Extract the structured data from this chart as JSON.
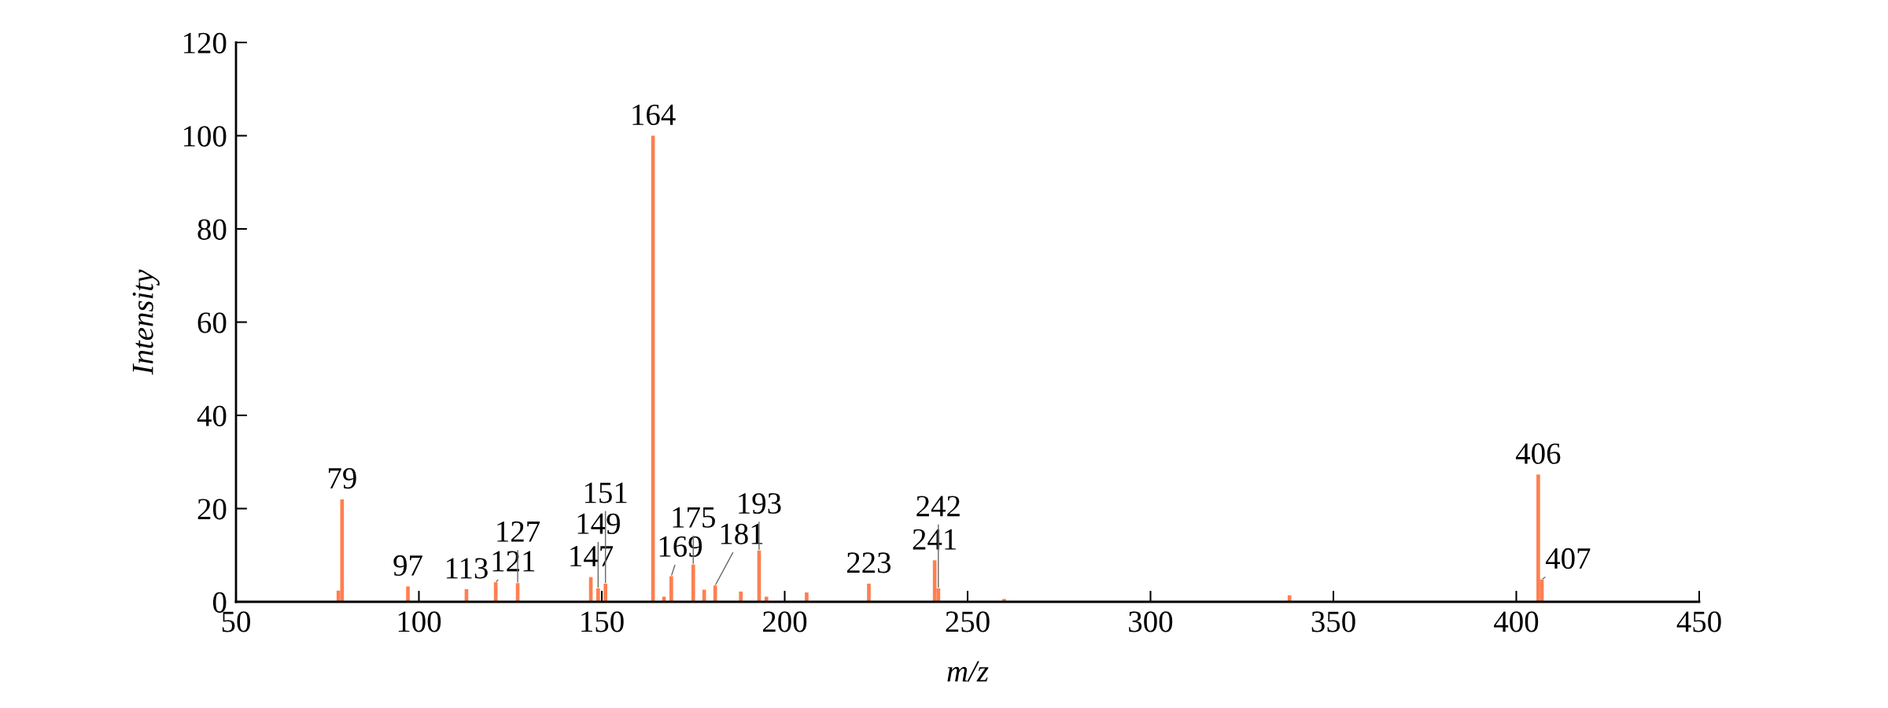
{
  "chart_data": {
    "type": "bar",
    "xlabel": "m/z",
    "ylabel": "Intensity",
    "x": [
      78,
      79,
      97,
      113,
      121,
      127,
      147,
      149,
      151,
      164,
      167,
      169,
      175,
      178,
      181,
      188,
      193,
      195,
      206,
      223,
      241,
      242,
      260,
      338,
      406,
      407
    ],
    "values": [
      2.4,
      22,
      3.3,
      2.7,
      4.2,
      4.0,
      5.3,
      2.9,
      3.9,
      100,
      1.1,
      5.5,
      8,
      2.6,
      3.5,
      2.2,
      11,
      1.1,
      2.0,
      3.9,
      8.9,
      2.9,
      0.6,
      1.4,
      27.3,
      4.8
    ],
    "annotations": [
      {
        "text": "79",
        "x": 79,
        "y": 22
      },
      {
        "text": "97",
        "x": 97,
        "y": 3.3
      },
      {
        "text": "113",
        "x": 113,
        "y": 2.7
      },
      {
        "text": "121",
        "x": 121,
        "y": 4.2
      },
      {
        "text": "127",
        "x": 127,
        "y": 4.0
      },
      {
        "text": "147",
        "x": 147,
        "y": 5.3
      },
      {
        "text": "149",
        "x": 149,
        "y": 2.9
      },
      {
        "text": "151",
        "x": 151,
        "y": 3.9
      },
      {
        "text": "164",
        "x": 164,
        "y": 100
      },
      {
        "text": "169",
        "x": 169,
        "y": 5.5
      },
      {
        "text": "175",
        "x": 175,
        "y": 8
      },
      {
        "text": "181",
        "x": 181,
        "y": 3.5
      },
      {
        "text": "193",
        "x": 193,
        "y": 11
      },
      {
        "text": "223",
        "x": 223,
        "y": 3.9
      },
      {
        "text": "241",
        "x": 241,
        "y": 8.9
      },
      {
        "text": "242",
        "x": 242,
        "y": 2.9
      },
      {
        "text": "406",
        "x": 406,
        "y": 27.3
      },
      {
        "text": "407",
        "x": 407,
        "y": 4.8
      }
    ],
    "color": "#ff7f50",
    "xlim": [
      50,
      450
    ],
    "xticks": [
      50,
      100,
      150,
      200,
      250,
      300,
      350,
      400,
      450
    ],
    "ylim": [
      0,
      120
    ],
    "yticks": [
      0,
      20,
      40,
      60,
      80,
      100,
      120
    ],
    "grid": false,
    "legend": false
  }
}
